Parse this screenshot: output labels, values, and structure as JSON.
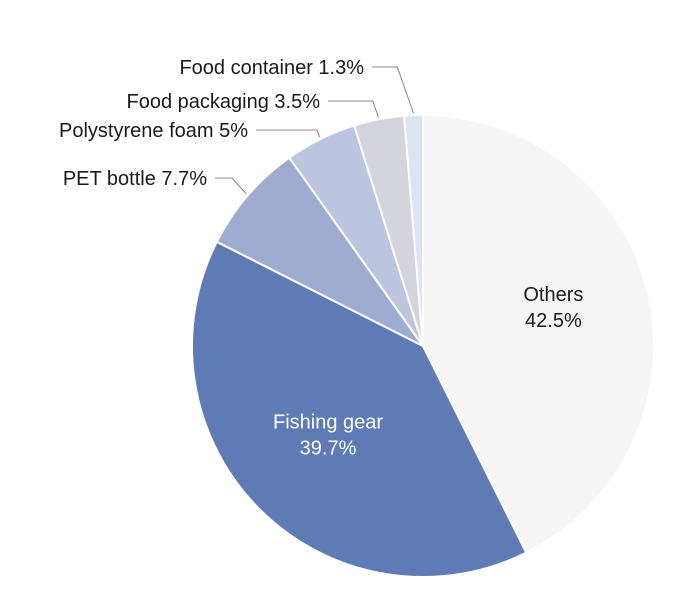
{
  "chart_data": {
    "type": "pie",
    "title": "",
    "slices": [
      {
        "label": "Others",
        "value": 42.5,
        "value_label": "42.5%",
        "color": "#f5f5f5",
        "label_placement": "inside",
        "text_color": "#1a1a1a"
      },
      {
        "label": "Fishing gear",
        "value": 39.7,
        "value_label": "39.7%",
        "color": "#5e7bb5",
        "label_placement": "inside",
        "text_color": "#ffffff"
      },
      {
        "label": "PET bottle",
        "value": 7.7,
        "value_label": "7.7%",
        "color": "#9fabd1",
        "label_placement": "outside"
      },
      {
        "label": "Polystyrene foam",
        "value": 5,
        "value_label": "5%",
        "color": "#bcc4e0",
        "label_placement": "outside"
      },
      {
        "label": "Food packaging",
        "value": 3.5,
        "value_label": "3.5%",
        "color": "#d4d4dd",
        "label_placement": "outside"
      },
      {
        "label": "Food container",
        "value": 1.3,
        "value_label": "1.3%",
        "color": "#dee3f2",
        "label_placement": "outside"
      }
    ]
  }
}
